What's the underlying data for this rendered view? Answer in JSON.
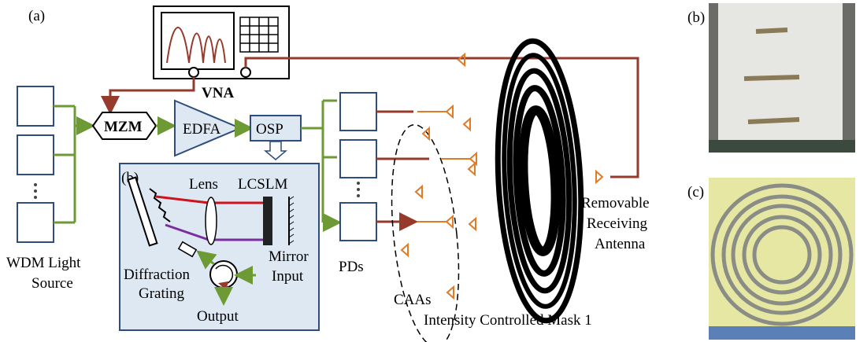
{
  "panel_labels": {
    "a": "(a)",
    "b": "(b)",
    "c": "(c)"
  },
  "instrument": "VNA",
  "components": {
    "modulator": "MZM",
    "amplifier": "EDFA",
    "processor": "OSP"
  },
  "inset": {
    "label": "(b)",
    "lens": "Lens",
    "modulator": "LCSLM",
    "grating": [
      "Diffraction",
      "Grating"
    ],
    "mirror": "Mirror",
    "input": "Input",
    "output": "Output"
  },
  "source": [
    "WDM Light",
    "Source"
  ],
  "detectors": "PDs",
  "antennas": "CAAs",
  "mask": "Intensity Controlled Mask 1",
  "receiver": [
    "Removable",
    "Receiving",
    "Antenna"
  ]
}
